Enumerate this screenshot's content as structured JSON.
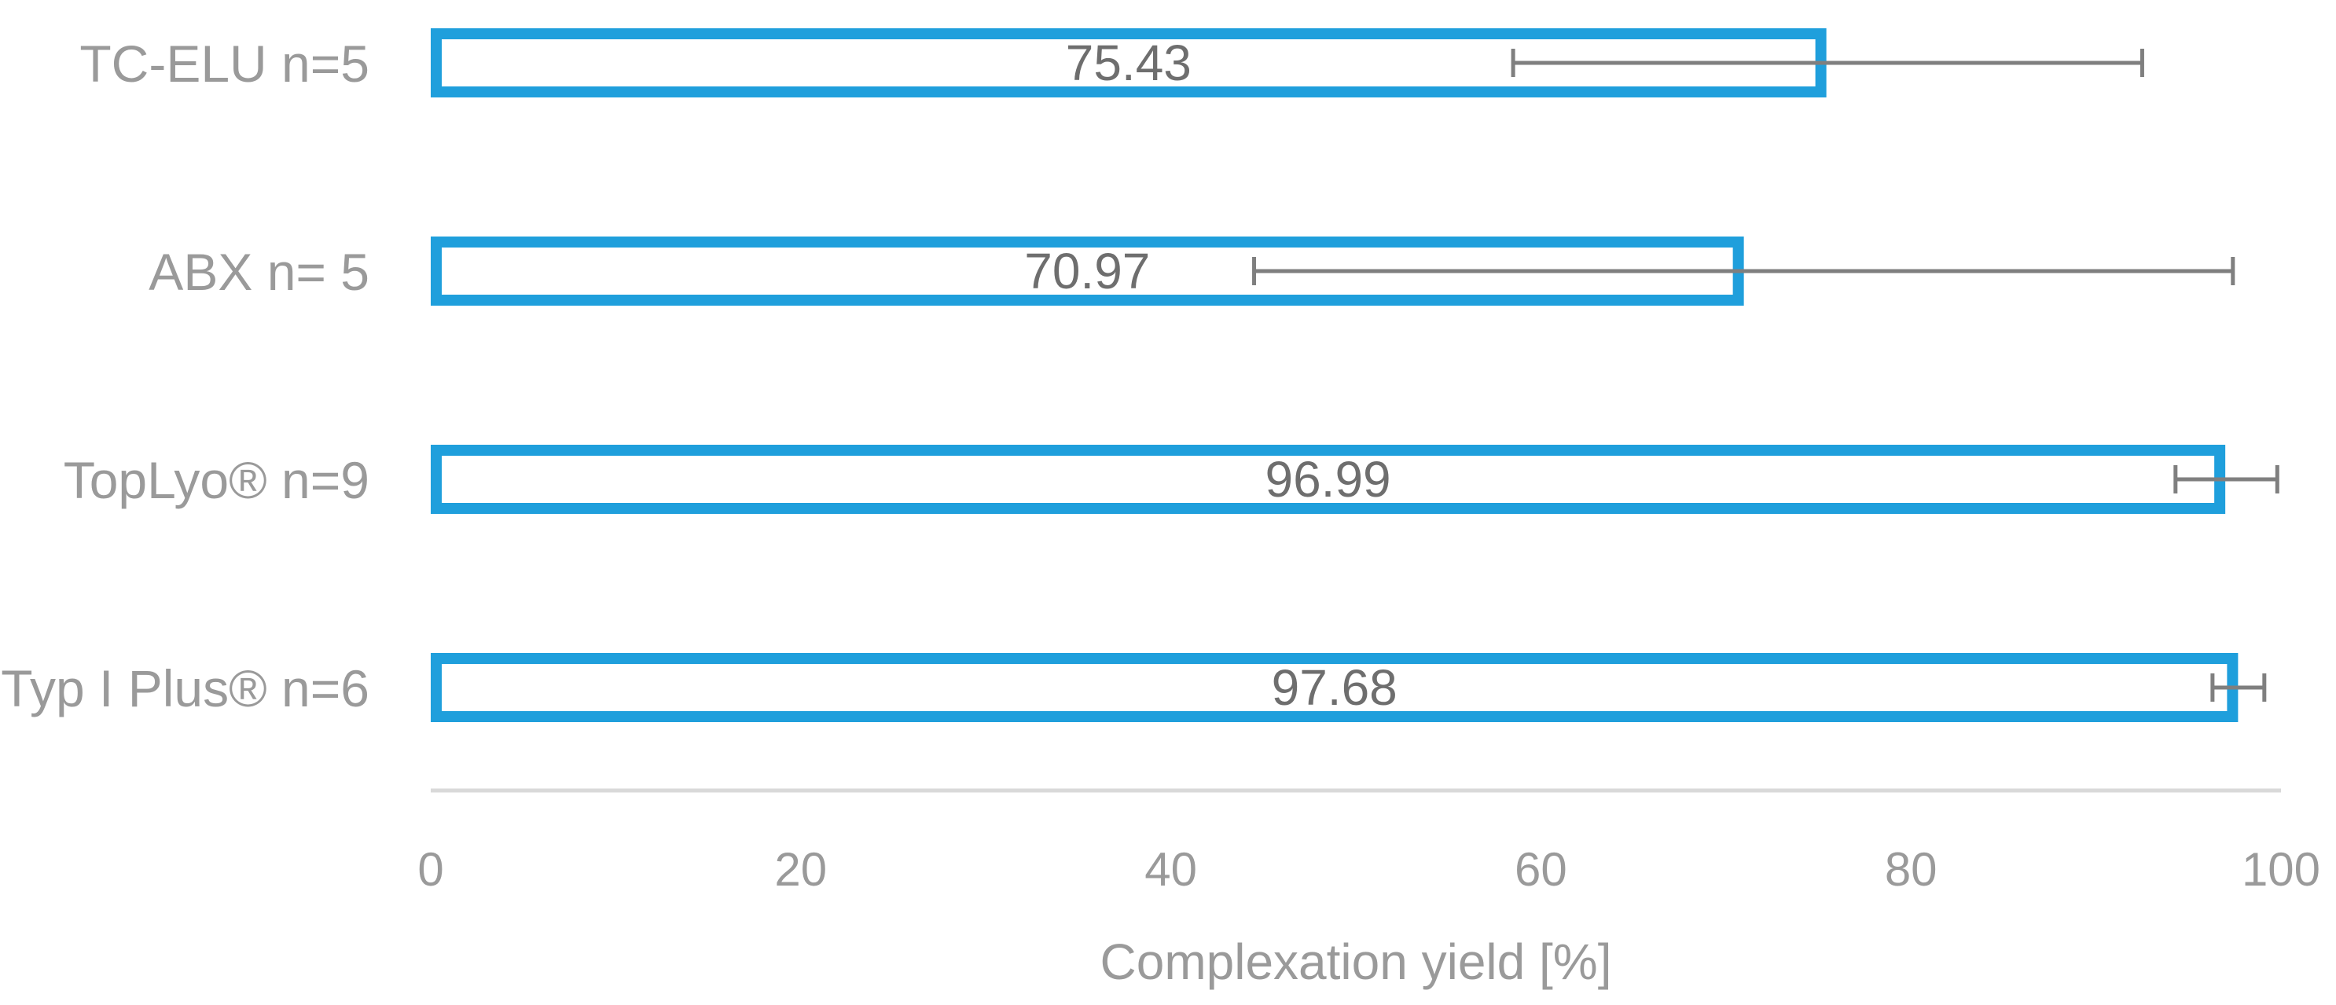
{
  "chart_data": {
    "type": "bar",
    "orientation": "horizontal",
    "categories": [
      "TC-ELU n=5",
      "ABX n= 5",
      "TopLyo® n=9",
      "Typ I Plus® n=6"
    ],
    "values": [
      75.43,
      70.97,
      96.99,
      97.68
    ],
    "data_labels": [
      "75.43",
      "70.97",
      "96.99",
      "97.68"
    ],
    "error_bars": [
      {
        "low": 58.5,
        "high": 92.5
      },
      {
        "low": 44.5,
        "high": 97.4
      },
      {
        "low": 94.3,
        "high": 99.8
      },
      {
        "low": 96.3,
        "high": 99.1
      }
    ],
    "xlabel": "Complexation yield [%]",
    "ylabel": "",
    "xlim": [
      0,
      100
    ],
    "xticks": [
      0,
      20,
      40,
      60,
      80,
      100
    ],
    "grid": false,
    "legend": "none",
    "colors": {
      "bar_outline": "#1f9fdc",
      "bar_fill": "#ffffff",
      "error_bar": "#7f7f7f",
      "axis_line": "#d9d9d9",
      "label_text": "#9a9a9a",
      "data_label_text": "#6e6e6e"
    }
  }
}
